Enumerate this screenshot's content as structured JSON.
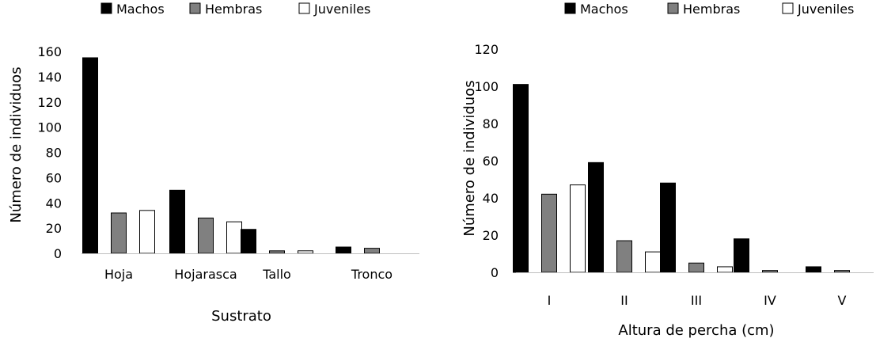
{
  "chart_data": [
    {
      "type": "bar",
      "title": "",
      "xlabel": "Sustrato",
      "ylabel": "Número de individuos",
      "categories": [
        "Hoja",
        "Hojarasca",
        "Tallo",
        "Tronco"
      ],
      "ylim": [
        0,
        160
      ],
      "yticks": [
        0,
        20,
        40,
        60,
        80,
        100,
        120,
        140,
        160
      ],
      "grid": false,
      "legend_position": "top",
      "series": [
        {
          "name": "Machos",
          "color": "#000000",
          "values": [
            155,
            50,
            19,
            5
          ]
        },
        {
          "name": "Hembras",
          "color": "#808080",
          "values": [
            32,
            28,
            2,
            4
          ]
        },
        {
          "name": "Juveniles",
          "color": "#ffffff",
          "values": [
            34,
            25,
            2,
            0
          ]
        }
      ]
    },
    {
      "type": "bar",
      "title": "",
      "xlabel": "Altura de percha (cm)",
      "ylabel": "Número de individuos",
      "categories": [
        "I",
        "II",
        "III",
        "IV",
        "V"
      ],
      "ylim": [
        0,
        120
      ],
      "yticks": [
        0,
        20,
        40,
        60,
        80,
        100,
        120
      ],
      "grid": false,
      "legend_position": "top",
      "series": [
        {
          "name": "Machos",
          "color": "#000000",
          "values": [
            101,
            59,
            48,
            18,
            3
          ]
        },
        {
          "name": "Hembras",
          "color": "#808080",
          "values": [
            42,
            17,
            5,
            1,
            1
          ]
        },
        {
          "name": "Juveniles",
          "color": "#ffffff",
          "values": [
            47,
            11,
            3,
            0,
            0
          ]
        }
      ]
    }
  ]
}
